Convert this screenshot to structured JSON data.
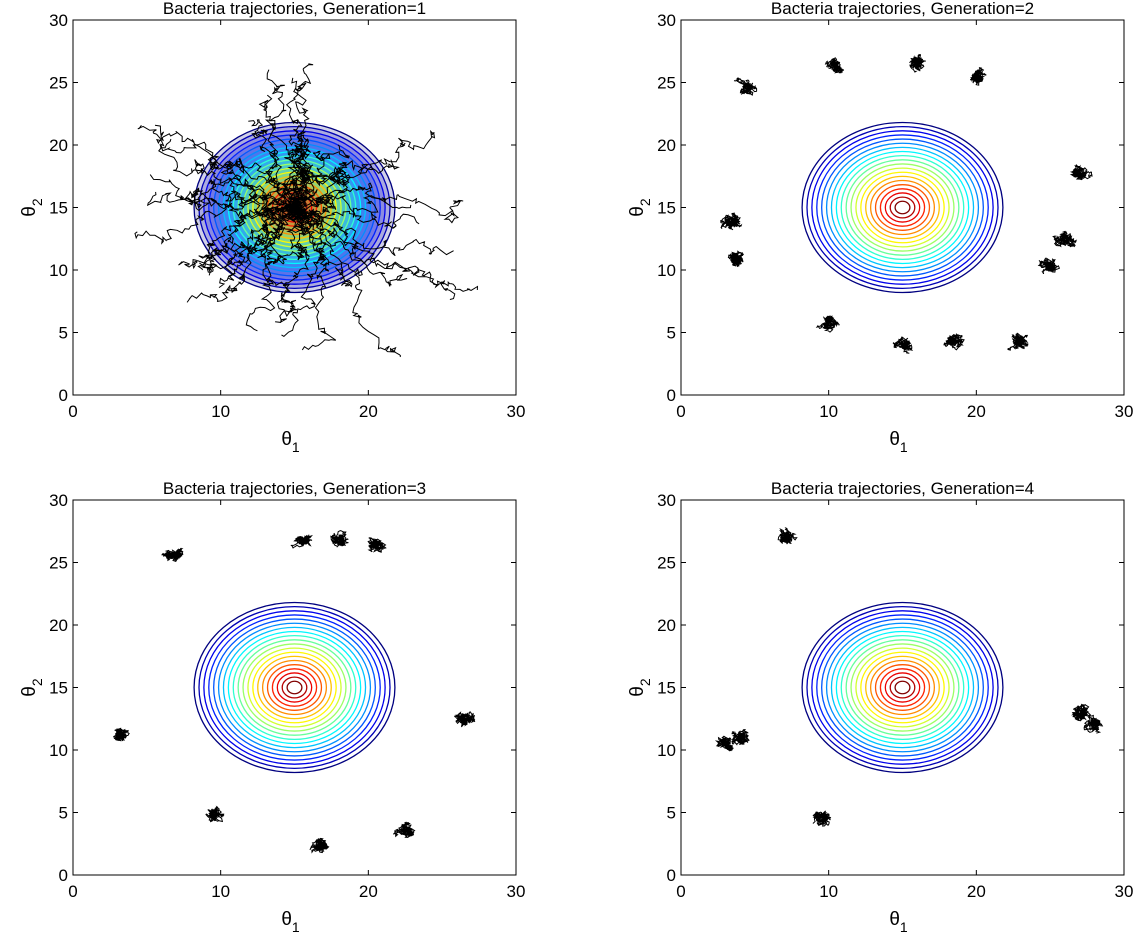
{
  "chart_data": [
    {
      "type": "contour",
      "title": "Bacteria trajectories, Generation=1",
      "xlabel": "θ",
      "xlabel_sub": "1",
      "ylabel": "θ",
      "ylabel_sub": "2",
      "xlim": [
        0,
        30
      ],
      "ylim": [
        0,
        30
      ],
      "xticks": [
        "0",
        "10",
        "20",
        "30"
      ],
      "yticks": [
        "0",
        "5",
        "10",
        "15",
        "20",
        "25",
        "30"
      ],
      "grid": false,
      "contour": {
        "center": [
          15,
          15
        ],
        "radius_min": 0.5,
        "radius_max": 6.8,
        "levels": 20
      },
      "contour_fill": true,
      "trajectories": {
        "style": "radial",
        "count": 45,
        "center": [
          15,
          15
        ],
        "reach_min": 6,
        "reach_max": 12
      }
    },
    {
      "type": "contour",
      "title": "Bacteria trajectories, Generation=2",
      "xlabel": "θ",
      "xlabel_sub": "1",
      "ylabel": "θ",
      "ylabel_sub": "2",
      "xlim": [
        0,
        30
      ],
      "ylim": [
        0,
        30
      ],
      "xticks": [
        "0",
        "10",
        "20",
        "30"
      ],
      "yticks": [
        "0",
        "5",
        "10",
        "15",
        "20",
        "25",
        "30"
      ],
      "grid": false,
      "contour": {
        "center": [
          15,
          15
        ],
        "radius_min": 0.5,
        "radius_max": 6.8,
        "levels": 20
      },
      "contour_fill": false,
      "trajectories": {
        "style": "clusters",
        "clusters": [
          [
            4.5,
            24.5
          ],
          [
            10.5,
            26.3
          ],
          [
            16,
            26.5
          ],
          [
            20,
            25.5
          ],
          [
            3.5,
            13.8
          ],
          [
            3.8,
            11
          ],
          [
            10,
            5.8
          ],
          [
            15,
            4
          ],
          [
            18.5,
            4.5
          ],
          [
            23,
            4.2
          ],
          [
            25,
            10.3
          ],
          [
            26,
            12.5
          ],
          [
            27,
            17.8
          ]
        ]
      }
    },
    {
      "type": "contour",
      "title": "Bacteria trajectories, Generation=3",
      "xlabel": "θ",
      "xlabel_sub": "1",
      "ylabel": "θ",
      "ylabel_sub": "2",
      "xlim": [
        0,
        30
      ],
      "ylim": [
        0,
        30
      ],
      "xticks": [
        "0",
        "10",
        "20",
        "30"
      ],
      "yticks": [
        "0",
        "5",
        "10",
        "15",
        "20",
        "25",
        "30"
      ],
      "grid": false,
      "contour": {
        "center": [
          15,
          15
        ],
        "radius_min": 0.5,
        "radius_max": 6.8,
        "levels": 20
      },
      "contour_fill": false,
      "trajectories": {
        "style": "clusters",
        "clusters": [
          [
            6.8,
            25.5
          ],
          [
            15.5,
            26.8
          ],
          [
            18,
            27
          ],
          [
            20.5,
            26.3
          ],
          [
            3.2,
            11.3
          ],
          [
            26.5,
            12.5
          ],
          [
            9.5,
            4.8
          ],
          [
            16.8,
            2.3
          ],
          [
            22.5,
            3.5
          ]
        ]
      }
    },
    {
      "type": "contour",
      "title": "Bacteria trajectories, Generation=4",
      "xlabel": "θ",
      "xlabel_sub": "1",
      "ylabel": "θ",
      "ylabel_sub": "2",
      "xlim": [
        0,
        30
      ],
      "ylim": [
        0,
        30
      ],
      "xticks": [
        "0",
        "10",
        "20",
        "30"
      ],
      "yticks": [
        "0",
        "5",
        "10",
        "15",
        "20",
        "25",
        "30"
      ],
      "grid": false,
      "contour": {
        "center": [
          15,
          15
        ],
        "radius_min": 0.5,
        "radius_max": 6.8,
        "levels": 20
      },
      "contour_fill": false,
      "trajectories": {
        "style": "clusters",
        "clusters": [
          [
            7,
            27
          ],
          [
            3,
            10.5
          ],
          [
            4,
            11
          ],
          [
            9.5,
            4.5
          ],
          [
            27,
            13
          ],
          [
            28,
            12
          ]
        ]
      }
    }
  ]
}
